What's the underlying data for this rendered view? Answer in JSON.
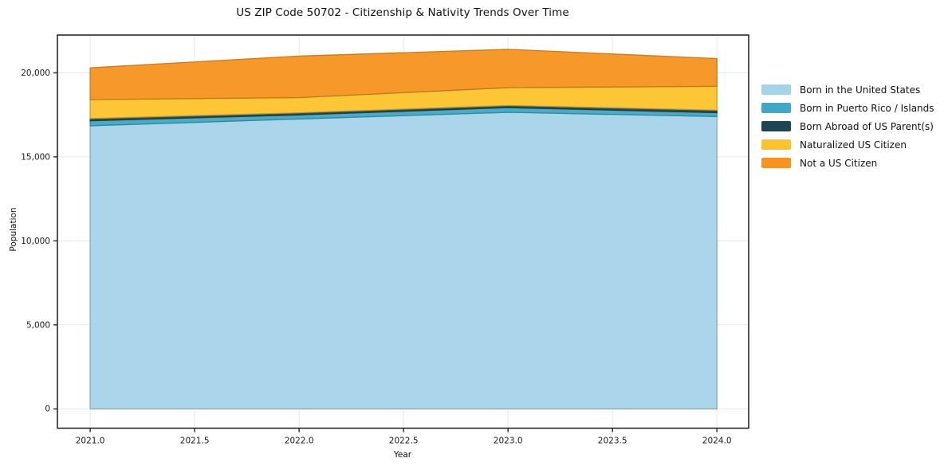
{
  "figure": {
    "title": "US ZIP Code 50702 - Citizenship & Nativity Trends Over Time",
    "xlabel": "Year",
    "ylabel": "Population"
  },
  "chart_data": {
    "type": "area",
    "stacked": true,
    "title": "US ZIP Code 50702 - Citizenship & Nativity Trends Over Time",
    "xlabel": "Year",
    "ylabel": "Population",
    "x": [
      2021,
      2022,
      2023,
      2024
    ],
    "series": [
      {
        "name": "Born in the United States",
        "color": "#A5D3E9",
        "values": [
          16850,
          17250,
          17650,
          17400
        ]
      },
      {
        "name": "Born in Puerto Rico / Islands",
        "color": "#3FA8C4",
        "values": [
          300,
          250,
          280,
          230
        ]
      },
      {
        "name": "Born Abroad of US Parent(s)",
        "color": "#1E4456",
        "values": [
          130,
          120,
          130,
          150
        ]
      },
      {
        "name": "Naturalized US Citizen",
        "color": "#FDC32B",
        "values": [
          1130,
          910,
          1060,
          1420
        ]
      },
      {
        "name": "Not a US Citizen",
        "color": "#F7941F",
        "values": [
          1890,
          2470,
          2280,
          1650
        ]
      }
    ],
    "stacked_totals": [
      20300,
      21000,
      21400,
      20850
    ],
    "xticks": {
      "values": [
        2021.0,
        2021.5,
        2022.0,
        2022.5,
        2023.0,
        2023.5,
        2024.0
      ],
      "labels": [
        "2021.0",
        "2021.5",
        "2022.0",
        "2022.5",
        "2023.0",
        "2023.5",
        "2024.0"
      ]
    },
    "yticks": {
      "values": [
        0,
        5000,
        10000,
        15000,
        20000
      ],
      "labels": [
        "0",
        "5,000",
        "10,000",
        "15,000",
        "20,000"
      ]
    },
    "xlim": [
      2020.843,
      2024.152
    ],
    "ylim": [
      -1150,
      22250
    ],
    "grid": true,
    "legend_position": "right",
    "grid_color": "#e7e7e7",
    "spine_color": "#2a2a2a",
    "tick_label_color": "#1a1a1a"
  }
}
